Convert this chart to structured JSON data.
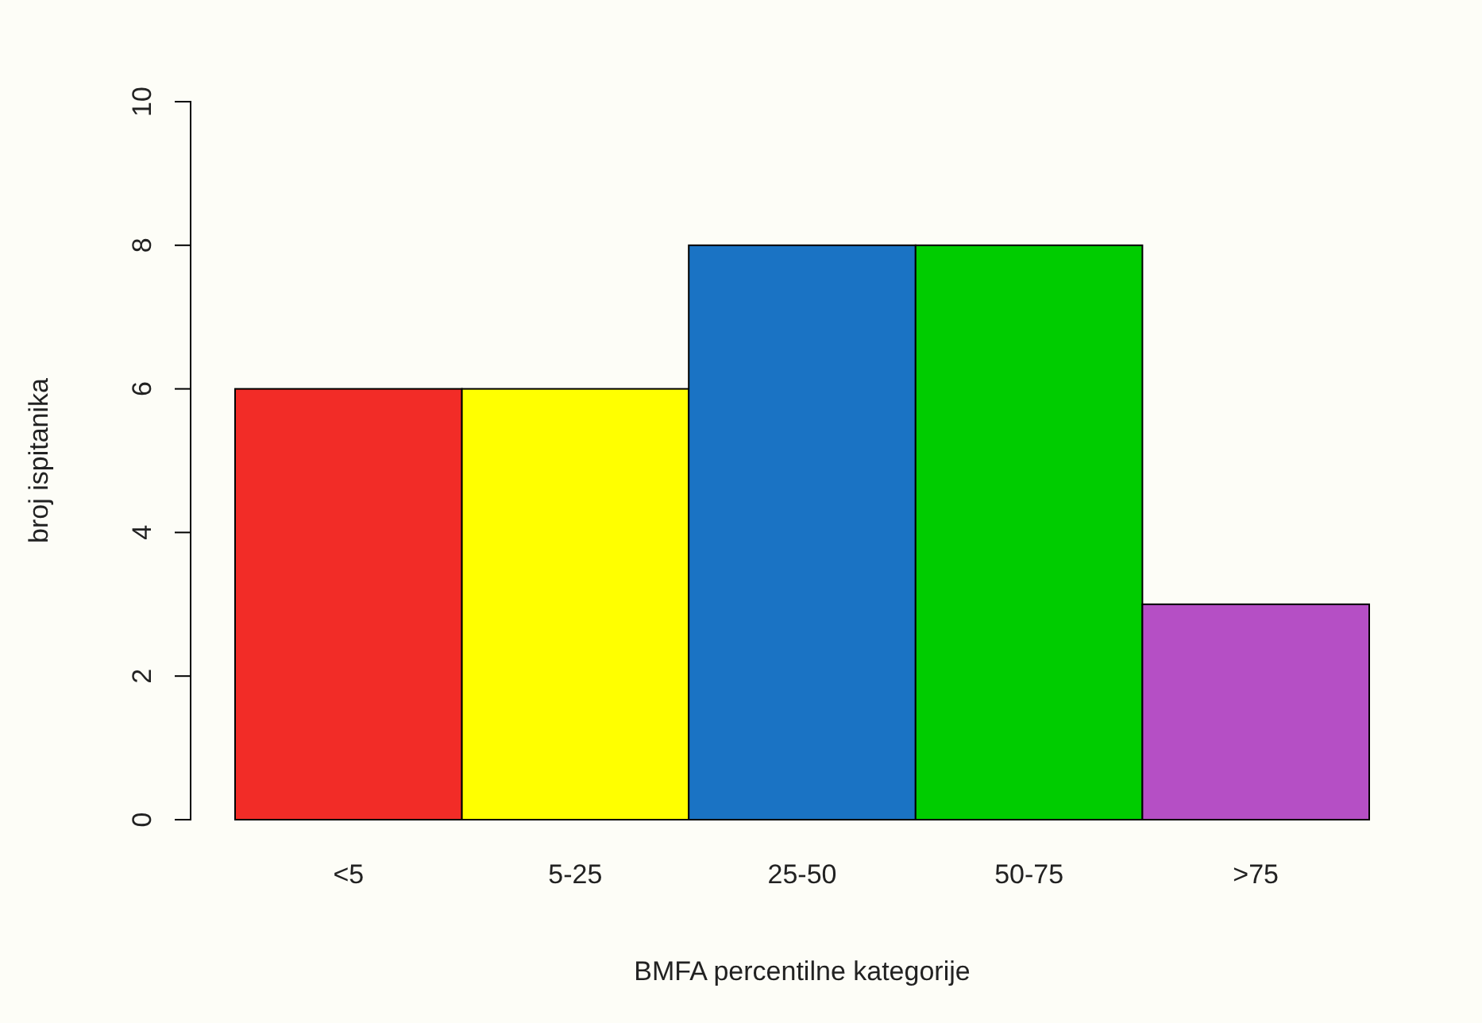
{
  "chart_data": {
    "type": "bar",
    "xlabel": "BMFA percentilne kategorije",
    "ylabel": "broj ispitanika",
    "categories": [
      "<5",
      "5-25",
      "25-50",
      "50-75",
      ">75"
    ],
    "values": [
      6,
      6,
      8,
      8,
      3
    ],
    "colors": [
      "#f22c27",
      "#ffff00",
      "#1a73c4",
      "#00cc00",
      "#b54fc5"
    ],
    "ylim": [
      0,
      10
    ],
    "yticks": [
      0,
      2,
      4,
      6,
      8,
      10
    ],
    "grid": false,
    "legend": false
  }
}
